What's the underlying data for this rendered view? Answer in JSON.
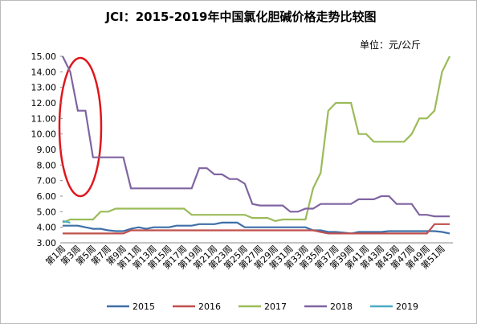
{
  "chart_data": {
    "type": "line",
    "title": "JCI：2015-2019年中国氯化胆碱价格走势比较图",
    "unit_label": "单位：元/公斤",
    "categories": [
      "第1周",
      null,
      "第3周",
      null,
      "第5周",
      null,
      "第7周",
      null,
      "第9周",
      null,
      "第11周",
      null,
      "第13周",
      null,
      "第15周",
      null,
      "第17周",
      null,
      "第19周",
      null,
      "第21周",
      null,
      "第23周",
      null,
      "第25周",
      null,
      "第27周",
      null,
      "第29周",
      null,
      "第31周",
      null,
      "第33周",
      null,
      "第35周",
      null,
      "第37周",
      null,
      "第39周",
      null,
      "第41周",
      null,
      "第43周",
      null,
      "第45周",
      null,
      "第47周",
      null,
      "第49周",
      null,
      "第51周",
      null
    ],
    "series": [
      {
        "name": "2015",
        "color": "#3e6fa8",
        "values": [
          4.1,
          4.1,
          4.1,
          4.0,
          3.9,
          3.9,
          3.8,
          3.75,
          3.75,
          3.9,
          4.0,
          3.9,
          4.0,
          4.0,
          4.0,
          4.1,
          4.1,
          4.1,
          4.2,
          4.2,
          4.2,
          4.3,
          4.3,
          4.3,
          4.0,
          4.0,
          4.0,
          4.0,
          4.0,
          4.0,
          4.0,
          4.0,
          4.0,
          3.8,
          3.8,
          3.7,
          3.7,
          3.65,
          3.6,
          3.7,
          3.7,
          3.7,
          3.7,
          3.75,
          3.75,
          3.75,
          3.75,
          3.75,
          3.75,
          3.75,
          3.7,
          3.6
        ]
      },
      {
        "name": "2016",
        "color": "#c0504d",
        "values": [
          3.6,
          3.6,
          3.6,
          3.6,
          3.6,
          3.6,
          3.6,
          3.6,
          3.6,
          3.8,
          3.8,
          3.8,
          3.8,
          3.8,
          3.8,
          3.8,
          3.8,
          3.8,
          3.8,
          3.8,
          3.8,
          3.8,
          3.8,
          3.8,
          3.8,
          3.8,
          3.8,
          3.8,
          3.8,
          3.8,
          3.8,
          3.8,
          3.8,
          3.8,
          3.7,
          3.6,
          3.6,
          3.6,
          3.6,
          3.6,
          3.6,
          3.6,
          3.6,
          3.6,
          3.6,
          3.6,
          3.6,
          3.6,
          3.6,
          4.2,
          4.2,
          4.2
        ]
      },
      {
        "name": "2017",
        "color": "#9bbb59",
        "values": [
          4.3,
          4.5,
          4.5,
          4.5,
          4.5,
          5.0,
          5.0,
          5.2,
          5.2,
          5.2,
          5.2,
          5.2,
          5.2,
          5.2,
          5.2,
          5.2,
          5.2,
          4.8,
          4.8,
          4.8,
          4.8,
          4.8,
          4.8,
          4.8,
          4.8,
          4.6,
          4.6,
          4.6,
          4.4,
          4.5,
          4.5,
          4.5,
          4.5,
          6.5,
          7.5,
          11.5,
          12,
          12,
          12,
          10,
          10,
          9.5,
          9.5,
          9.5,
          9.5,
          9.5,
          10,
          11,
          11,
          11.5,
          14,
          15
        ]
      },
      {
        "name": "2018",
        "color": "#8064a2",
        "values": [
          15,
          14,
          11.5,
          11.5,
          8.5,
          8.5,
          8.5,
          8.5,
          8.5,
          6.5,
          6.5,
          6.5,
          6.5,
          6.5,
          6.5,
          6.5,
          6.5,
          6.5,
          7.8,
          7.8,
          7.4,
          7.4,
          7.1,
          7.1,
          6.8,
          5.5,
          5.4,
          5.4,
          5.4,
          5.4,
          5.0,
          5.0,
          5.2,
          5.2,
          5.5,
          5.5,
          5.5,
          5.5,
          5.5,
          5.8,
          5.8,
          5.8,
          6.0,
          6.0,
          5.5,
          5.5,
          5.5,
          4.8,
          4.8,
          4.7,
          4.7,
          4.7
        ]
      },
      {
        "name": "2019",
        "color": "#4bacc6",
        "values": [
          4.4,
          4.3,
          null,
          null,
          null,
          null,
          null,
          null,
          null,
          null,
          null,
          null,
          null,
          null,
          null,
          null,
          null,
          null,
          null,
          null,
          null,
          null,
          null,
          null,
          null,
          null,
          null,
          null,
          null,
          null,
          null,
          null,
          null,
          null,
          null,
          null,
          null,
          null,
          null,
          null,
          null,
          null,
          null,
          null,
          null,
          null,
          null,
          null,
          null,
          null,
          null,
          null
        ]
      }
    ],
    "ylim": [
      3,
      15
    ],
    "yticks": [
      {
        "value": 3,
        "label": "3.00"
      },
      {
        "value": 4,
        "label": "4.00"
      },
      {
        "value": 5,
        "label": "5.00"
      },
      {
        "value": 6,
        "label": "6.00"
      },
      {
        "value": 7,
        "label": "7.00"
      },
      {
        "value": 8,
        "label": "8.00"
      },
      {
        "value": 9,
        "label": "9.00"
      },
      {
        "value": 10,
        "label": "10.00"
      },
      {
        "value": 11,
        "label": "11.00"
      },
      {
        "value": 12,
        "label": "12.00"
      },
      {
        "value": 13,
        "label": "13.00"
      },
      {
        "value": 14,
        "label": "14.00"
      },
      {
        "value": 15,
        "label": "15.00"
      }
    ],
    "grid": false
  }
}
